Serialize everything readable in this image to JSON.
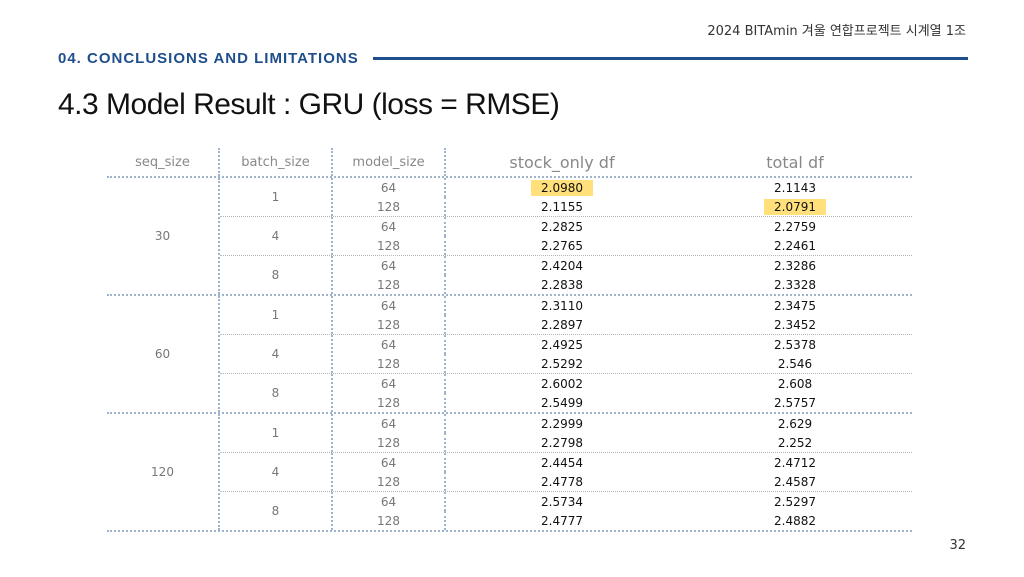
{
  "header": {
    "org_text": "2024 BITAmin 겨울 연합프로젝트 시계열 1조",
    "section_label": "04. CONCLUSIONS AND LIMITATIONS",
    "page_title": "4.3 Model Result : GRU (loss = RMSE)",
    "page_number": "32"
  },
  "table": {
    "columns": [
      "seq_size",
      "batch_size",
      "model_size",
      "stock_only df",
      "total df"
    ],
    "highlight_color": "#ffe07a",
    "groups": [
      {
        "seq": "30",
        "batches": [
          {
            "batch": "1",
            "rows": [
              {
                "model": "64",
                "stock": "2.0980",
                "total": "2.1143",
                "hl_stock": true,
                "hl_total": false
              },
              {
                "model": "128",
                "stock": "2.1155",
                "total": "2.0791",
                "hl_stock": false,
                "hl_total": true
              }
            ]
          },
          {
            "batch": "4",
            "rows": [
              {
                "model": "64",
                "stock": "2.2825",
                "total": "2.2759"
              },
              {
                "model": "128",
                "stock": "2.2765",
                "total": "2.2461"
              }
            ]
          },
          {
            "batch": "8",
            "rows": [
              {
                "model": "64",
                "stock": "2.4204",
                "total": "2.3286"
              },
              {
                "model": "128",
                "stock": "2.2838",
                "total": "2.3328"
              }
            ]
          }
        ]
      },
      {
        "seq": "60",
        "batches": [
          {
            "batch": "1",
            "rows": [
              {
                "model": "64",
                "stock": "2.3110",
                "total": "2.3475"
              },
              {
                "model": "128",
                "stock": "2.2897",
                "total": "2.3452"
              }
            ]
          },
          {
            "batch": "4",
            "rows": [
              {
                "model": "64",
                "stock": "2.4925",
                "total": "2.5378"
              },
              {
                "model": "128",
                "stock": "2.5292",
                "total": "2.546"
              }
            ]
          },
          {
            "batch": "8",
            "rows": [
              {
                "model": "64",
                "stock": "2.6002",
                "total": "2.608"
              },
              {
                "model": "128",
                "stock": "2.5499",
                "total": "2.5757"
              }
            ]
          }
        ]
      },
      {
        "seq": "120",
        "batches": [
          {
            "batch": "1",
            "rows": [
              {
                "model": "64",
                "stock": "2.2999",
                "total": "2.629"
              },
              {
                "model": "128",
                "stock": "2.2798",
                "total": "2.252"
              }
            ]
          },
          {
            "batch": "4",
            "rows": [
              {
                "model": "64",
                "stock": "2.4454",
                "total": "2.4712"
              },
              {
                "model": "128",
                "stock": "2.4778",
                "total": "2.4587"
              }
            ]
          },
          {
            "batch": "8",
            "rows": [
              {
                "model": "64",
                "stock": "2.5734",
                "total": "2.5297"
              },
              {
                "model": "128",
                "stock": "2.4777",
                "total": "2.4882"
              }
            ]
          }
        ]
      }
    ]
  }
}
